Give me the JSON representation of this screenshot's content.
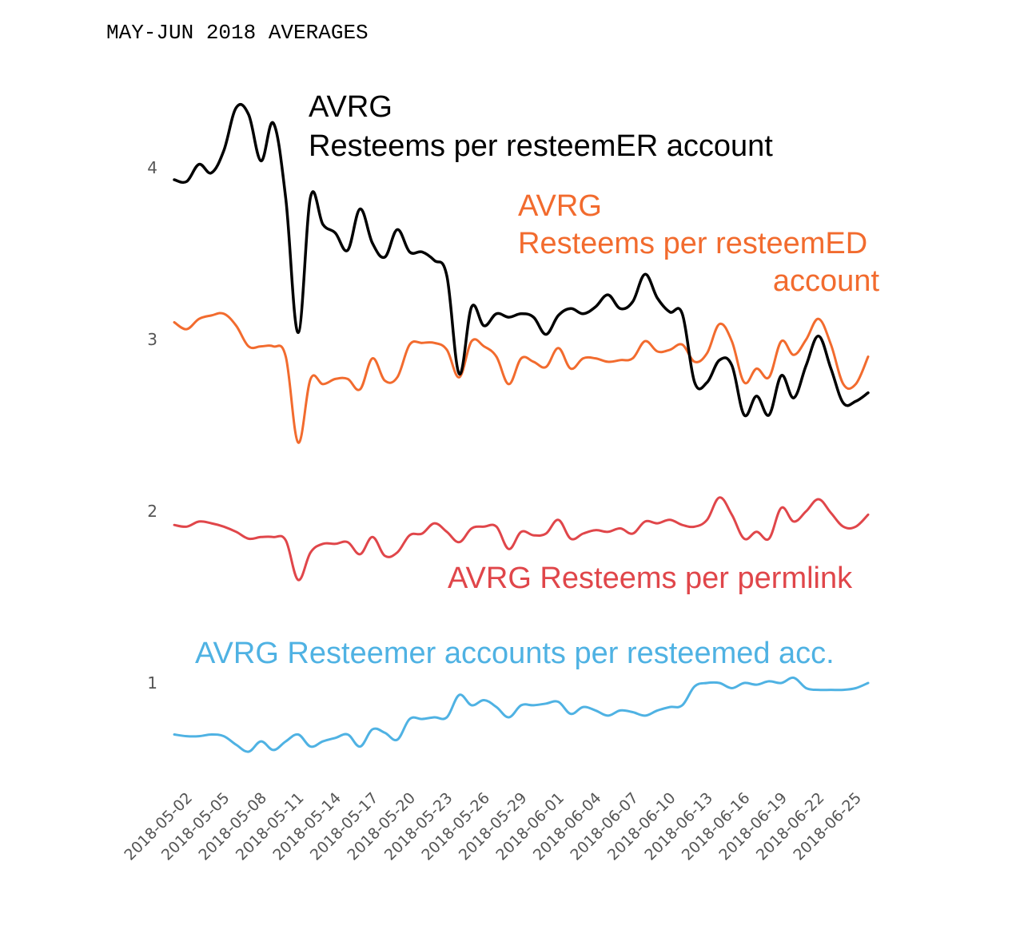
{
  "title": "MAY-JUN 2018 AVERAGES",
  "chart_data": {
    "type": "line",
    "title": "MAY-JUN 2018 AVERAGES",
    "xlabel": "",
    "ylabel": "",
    "ylim": [
      0.5,
      4.5
    ],
    "yticks": [
      "1",
      "2",
      "3",
      "4"
    ],
    "grid": false,
    "xtick_labels": [
      "2018-05-02",
      "2018-05-05",
      "2018-05-08",
      "2018-05-11",
      "2018-05-14",
      "2018-05-17",
      "2018-05-20",
      "2018-05-23",
      "2018-05-26",
      "2018-05-29",
      "2018-06-01",
      "2018-06-04",
      "2018-06-07",
      "2018-06-10",
      "2018-06-13",
      "2018-06-16",
      "2018-06-19",
      "2018-06-22",
      "2018-06-25"
    ],
    "x": [
      "2018-05-01",
      "2018-05-02",
      "2018-05-03",
      "2018-05-04",
      "2018-05-05",
      "2018-05-06",
      "2018-05-07",
      "2018-05-08",
      "2018-05-09",
      "2018-05-10",
      "2018-05-11",
      "2018-05-12",
      "2018-05-13",
      "2018-05-14",
      "2018-05-15",
      "2018-05-16",
      "2018-05-17",
      "2018-05-18",
      "2018-05-19",
      "2018-05-20",
      "2018-05-21",
      "2018-05-22",
      "2018-05-23",
      "2018-05-24",
      "2018-05-25",
      "2018-05-26",
      "2018-05-27",
      "2018-05-28",
      "2018-05-29",
      "2018-05-30",
      "2018-05-31",
      "2018-06-01",
      "2018-06-02",
      "2018-06-03",
      "2018-06-04",
      "2018-06-05",
      "2018-06-06",
      "2018-06-07",
      "2018-06-08",
      "2018-06-09",
      "2018-06-10",
      "2018-06-11",
      "2018-06-12",
      "2018-06-13",
      "2018-06-14",
      "2018-06-15",
      "2018-06-16",
      "2018-06-17",
      "2018-06-18",
      "2018-06-19",
      "2018-06-20",
      "2018-06-21",
      "2018-06-22",
      "2018-06-23",
      "2018-06-24",
      "2018-06-25",
      "2018-06-26"
    ],
    "series": [
      {
        "name": "AVRG\nResteems per resteemER account",
        "label_lines": [
          "AVRG",
          "Resteems per resteemER account"
        ],
        "color": "#000000",
        "values": [
          3.93,
          3.92,
          4.02,
          3.97,
          4.1,
          4.35,
          4.31,
          4.04,
          4.26,
          3.82,
          3.04,
          3.83,
          3.67,
          3.62,
          3.52,
          3.76,
          3.56,
          3.48,
          3.64,
          3.51,
          3.51,
          3.46,
          3.37,
          2.8,
          3.19,
          3.08,
          3.15,
          3.13,
          3.15,
          3.13,
          3.03,
          3.14,
          3.18,
          3.15,
          3.19,
          3.26,
          3.18,
          3.22,
          3.38,
          3.24,
          3.16,
          3.15,
          2.75,
          2.75,
          2.88,
          2.85,
          2.56,
          2.67,
          2.56,
          2.79,
          2.66,
          2.85,
          3.02,
          2.83,
          2.63,
          2.64,
          2.69
        ]
      },
      {
        "name": "AVRG\nResteems per resteemED\naccount",
        "label_lines": [
          "AVRG",
          "Resteems per resteemED",
          "account"
        ],
        "color": "#F26B2E",
        "values": [
          3.1,
          3.06,
          3.12,
          3.14,
          3.15,
          3.08,
          2.96,
          2.96,
          2.96,
          2.9,
          2.4,
          2.77,
          2.74,
          2.77,
          2.77,
          2.71,
          2.89,
          2.76,
          2.78,
          2.97,
          2.98,
          2.98,
          2.94,
          2.78,
          2.99,
          2.96,
          2.9,
          2.74,
          2.89,
          2.87,
          2.84,
          2.95,
          2.83,
          2.89,
          2.89,
          2.87,
          2.88,
          2.89,
          2.99,
          2.93,
          2.94,
          2.97,
          2.87,
          2.92,
          3.09,
          2.99,
          2.75,
          2.83,
          2.78,
          2.99,
          2.91,
          3.0,
          3.12,
          2.97,
          2.74,
          2.74,
          2.9
        ]
      },
      {
        "name": "AVRG Resteems per permlink",
        "label_lines": [
          "AVRG Resteems per permlink"
        ],
        "color": "#E0464A",
        "values": [
          1.92,
          1.91,
          1.94,
          1.93,
          1.91,
          1.88,
          1.84,
          1.85,
          1.85,
          1.83,
          1.6,
          1.76,
          1.81,
          1.81,
          1.82,
          1.75,
          1.85,
          1.74,
          1.76,
          1.86,
          1.87,
          1.93,
          1.88,
          1.82,
          1.9,
          1.91,
          1.91,
          1.78,
          1.88,
          1.86,
          1.87,
          1.95,
          1.84,
          1.87,
          1.89,
          1.88,
          1.9,
          1.87,
          1.94,
          1.93,
          1.95,
          1.92,
          1.91,
          1.95,
          2.08,
          1.98,
          1.84,
          1.88,
          1.84,
          2.02,
          1.94,
          2.0,
          2.07,
          1.99,
          1.91,
          1.91,
          1.98
        ]
      },
      {
        "name": "AVRG Resteemer accounts per resteemed acc.",
        "label_lines": [
          "AVRG Resteemer accounts per resteemed acc."
        ],
        "color": "#4FB2E3",
        "values": [
          0.7,
          0.69,
          0.69,
          0.7,
          0.69,
          0.64,
          0.6,
          0.66,
          0.61,
          0.66,
          0.7,
          0.63,
          0.66,
          0.68,
          0.7,
          0.63,
          0.73,
          0.71,
          0.67,
          0.79,
          0.79,
          0.8,
          0.8,
          0.93,
          0.87,
          0.9,
          0.86,
          0.8,
          0.87,
          0.87,
          0.88,
          0.89,
          0.82,
          0.86,
          0.84,
          0.81,
          0.84,
          0.83,
          0.81,
          0.84,
          0.86,
          0.87,
          0.98,
          1.0,
          1.0,
          0.97,
          1.0,
          0.99,
          1.01,
          1.0,
          1.03,
          0.97,
          0.96,
          0.96,
          0.96,
          0.97,
          1.0
        ]
      }
    ]
  }
}
